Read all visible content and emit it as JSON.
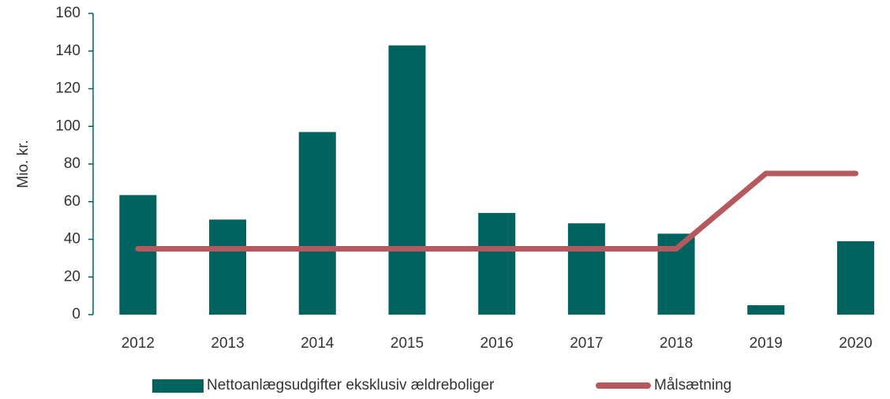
{
  "chart_data": {
    "type": "bar_line",
    "ylabel": "Mio. kr.",
    "categories": [
      "2012",
      "2013",
      "2014",
      "2015",
      "2016",
      "2017",
      "2018",
      "2019",
      "2020"
    ],
    "series": [
      {
        "name": "Nettoanlægsudgifter eksklusiv ældreboliger",
        "type": "bar",
        "color": "#00635f",
        "values": [
          63.5,
          50.5,
          97,
          143,
          54,
          48.5,
          43,
          5,
          39
        ]
      },
      {
        "name": "Målsætning",
        "type": "line",
        "color": "#b5595e",
        "values": [
          35,
          35,
          35,
          35,
          35,
          35,
          35,
          75,
          75
        ]
      }
    ],
    "ylim": [
      0,
      160
    ],
    "yticks": [
      0,
      20,
      40,
      60,
      80,
      100,
      120,
      140,
      160
    ],
    "legend": "bottom"
  }
}
